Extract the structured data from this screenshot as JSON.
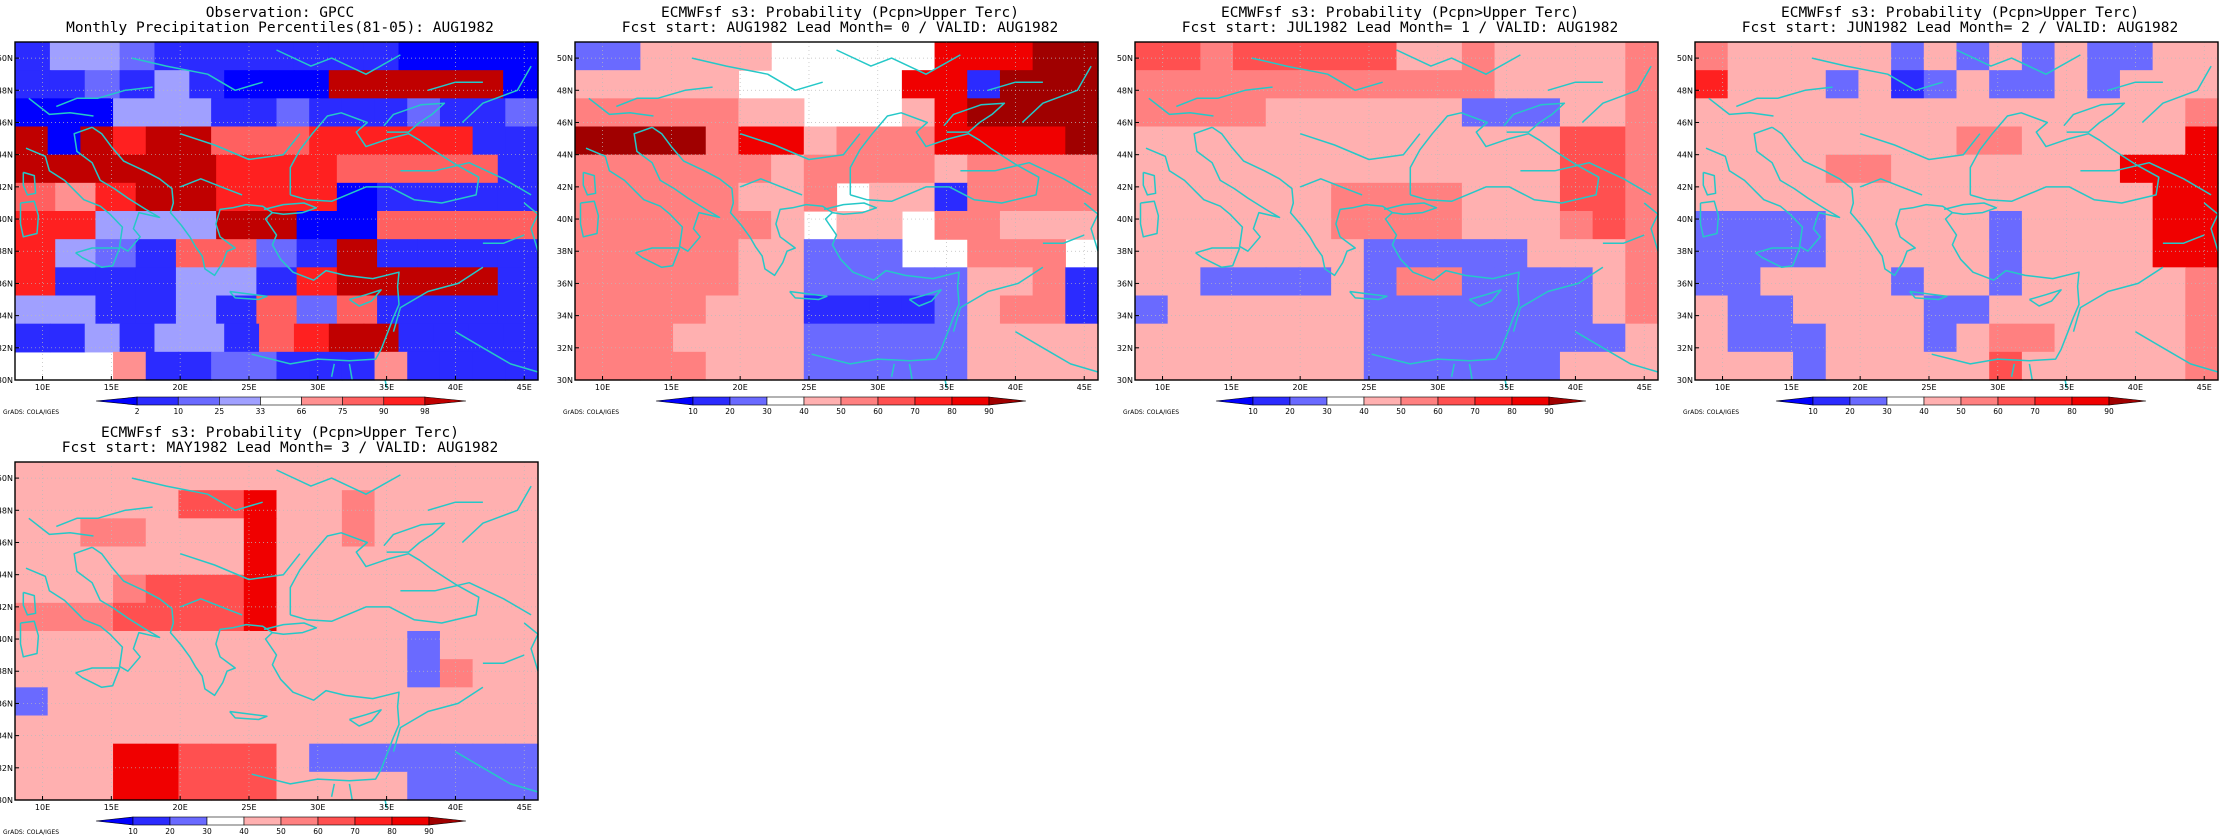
{
  "figure": {
    "footer_text": "GrADS: COLA/IGES"
  },
  "axes": {
    "lon_ticks": [
      "10E",
      "15E",
      "20E",
      "25E",
      "30E",
      "35E",
      "40E",
      "45E"
    ],
    "lat_ticks": [
      "30N",
      "32N",
      "34N",
      "36N",
      "38N",
      "40N",
      "42N",
      "44N",
      "46N",
      "48N",
      "50N"
    ],
    "lon_range": [
      8,
      46
    ],
    "lat_range": [
      30,
      51
    ]
  },
  "colors": {
    "coast": "#25c8c8",
    "border": "#000000",
    "prob_scale": [
      {
        "color": "#0000ff",
        "from": 0,
        "to": 10
      },
      {
        "color": "#2b2bff",
        "from": 10,
        "to": 20
      },
      {
        "color": "#6a6aff",
        "from": 20,
        "to": 30
      },
      {
        "color": "#ffffff",
        "from": 30,
        "to": 40
      },
      {
        "color": "#ffb0b0",
        "from": 40,
        "to": 50
      },
      {
        "color": "#ff8080",
        "from": 50,
        "to": 60
      },
      {
        "color": "#ff5050",
        "from": 60,
        "to": 70
      },
      {
        "color": "#ff2020",
        "from": 70,
        "to": 80
      },
      {
        "color": "#f00000",
        "from": 80,
        "to": 90
      },
      {
        "color": "#a00000",
        "from": 90,
        "to": 100
      }
    ],
    "obs_scale": [
      {
        "color": "#0000ff",
        "from": 0,
        "to": 2
      },
      {
        "color": "#2b2bff",
        "from": 2,
        "to": 10
      },
      {
        "color": "#6a6aff",
        "from": 10,
        "to": 25
      },
      {
        "color": "#a0a0ff",
        "from": 25,
        "to": 33
      },
      {
        "color": "#ffffff",
        "from": 33,
        "to": 66
      },
      {
        "color": "#ff9090",
        "from": 66,
        "to": 75
      },
      {
        "color": "#ff6060",
        "from": 75,
        "to": 90
      },
      {
        "color": "#ff2020",
        "from": 90,
        "to": 98
      },
      {
        "color": "#c00000",
        "from": 98,
        "to": 100
      }
    ]
  },
  "colorbars": {
    "obs_labels": [
      "2",
      "10",
      "25",
      "33",
      "66",
      "75",
      "90",
      "98"
    ],
    "prob_labels": [
      "10",
      "20",
      "30",
      "40",
      "50",
      "60",
      "70",
      "80",
      "90"
    ]
  },
  "panels": [
    {
      "id": "obs",
      "title_line1": "Observation: GPCC",
      "title_line2": "Monthly Precipitation Percentiles(81-05): AUG1982",
      "scale": "obs",
      "grid": [
        "133211111119999",
        "112131999888889",
        "9993331121112112",
        "8987886667777711",
        "8888877766661",
        "6578877791111",
        "7733388996666",
        "7321662181111",
        "7111331788881",
        "3311316261111",
        "113133167881111",
        "4445112211151111"
      ]
    },
    {
      "id": "lead0",
      "title_line1": "ECMWFsf s3: Probability (Pcpn>Upper Terc)",
      "title_line2": "Fcst start: AUG1982  Lead Month= 0 / VALID: AUG1982",
      "scale": "prob",
      "grid": [
        "2244443333388899",
        "4444433333881999",
        "5555544333489999",
        "9999588455588889",
        "5555554555545555",
        "5555544534415555",
        "5555554344355444",
        "5555544222335553",
        "5555544222224451",
        "5555444111124551",
        "5554444222224444",
        "5555444222224444"
      ]
    },
    {
      "id": "lead1",
      "title_line1": "ECMWFsf s3: Probability (Pcpn>Upper Terc)",
      "title_line2": "Fcst start: JUL1982  Lead Month= 1 / VALID: AUG1982",
      "scale": "prob",
      "grid": [
        "6656666644544445",
        "5555555555544445",
        "5555444444222445",
        "4444444444444665",
        "4444444444444665",
        "4444445555444665",
        "4444445555444565",
        "4444444222224445",
        "4422224255222245",
        "2444444222222245",
        "4444444222222224",
        "4444444222222444"
      ]
    },
    {
      "id": "lead2",
      "title_line1": "ECMWFsf s3: Probability (Pcpn>Upper Terc)",
      "title_line2": "Fcst start: JUN1982  Lead Month= 2 / VALID: AUG1982",
      "scale": "prob",
      "grid": [
        "5444442424242244",
        "7444241242242444",
        "4444444444444445",
        "4444444455444448",
        "4444554444444888",
        "4444444444444488",
        "2222444442444488",
        "2222444442444488",
        "2244442442444445",
        "4224444224444445",
        "4222444245544445",
        "4442444446444445"
      ]
    },
    {
      "id": "lead3",
      "title_line1": "ECMWFsf s3: Probability (Pcpn>Upper Terc)",
      "title_line2": "Fcst start: MAY1982  Lead Month= 3 / VALID: AUG1982",
      "scale": "prob",
      "grid": [
        "4444444444444444",
        "4444466844544444",
        "4455444844544444",
        "4444444844444444",
        "4445666844444444",
        "5556666844444444",
        "4444444444442444",
        "4444444444442544",
        "2444444444444444",
        "4444444444444444",
        "4448866642222222",
        "4448866644442222"
      ]
    }
  ]
}
